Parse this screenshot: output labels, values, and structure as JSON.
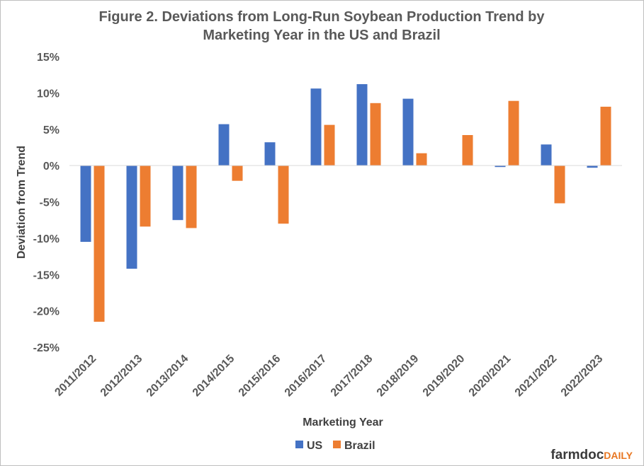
{
  "chart_data": {
    "type": "bar",
    "title_lines": [
      "Figure  2. Deviations  from  Long-Run  Soybean  Production  Trend  by",
      "Marketing  Year  in the US and Brazil"
    ],
    "xlabel": "Marketing Year",
    "ylabel": "Deviation from Trend",
    "ylim": [
      -25,
      15
    ],
    "yticks": [
      15,
      10,
      5,
      0,
      -5,
      -10,
      -15,
      -20,
      -25
    ],
    "ytick_labels": [
      "15%",
      "10%",
      "5%",
      "0%",
      "-5%",
      "-10%",
      "-15%",
      "-20%",
      "-25%"
    ],
    "categories": [
      "2011/2012",
      "2012/2013",
      "2013/2014",
      "2014/2015",
      "2015/2016",
      "2016/2017",
      "2017/2018",
      "2018/2019",
      "2019/2020",
      "2020/2021",
      "2021/2022",
      "2022/2023"
    ],
    "series": [
      {
        "name": "US",
        "color": "#4472c4",
        "values": [
          -10.5,
          -14.2,
          -7.5,
          5.7,
          3.2,
          10.6,
          11.2,
          9.2,
          0.0,
          -0.2,
          2.9,
          -0.3
        ]
      },
      {
        "name": "Brazil",
        "color": "#ed7d31",
        "values": [
          -21.5,
          -8.4,
          -8.6,
          -2.1,
          -8.0,
          5.6,
          8.6,
          1.7,
          4.2,
          8.9,
          -5.2,
          8.1
        ]
      }
    ],
    "grid": false,
    "legend_position": "bottom"
  },
  "logo": {
    "part1": "farmdoc",
    "part2": "DAILY"
  }
}
